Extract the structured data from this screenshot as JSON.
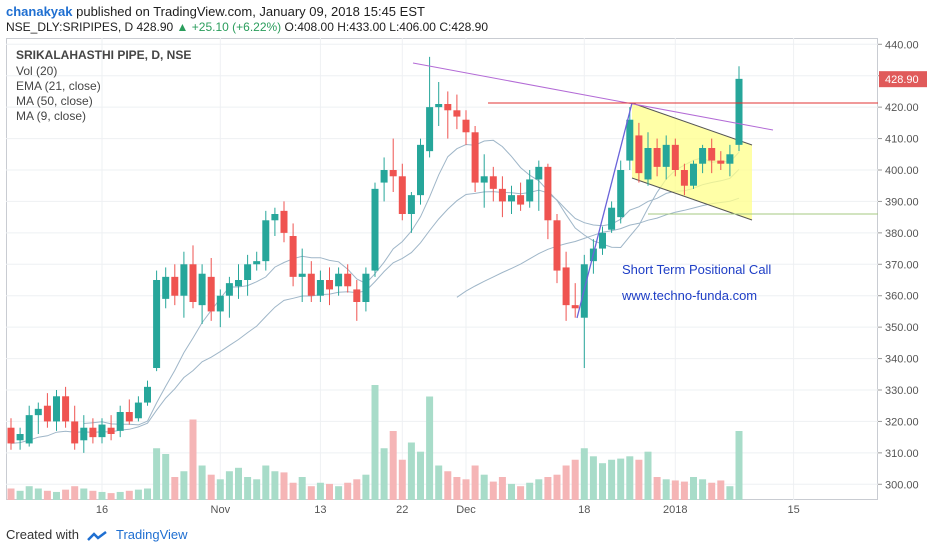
{
  "header": {
    "user": "chanakyak",
    "published_text": " published on TradingView.com, January 09, 2018 15:45 EST",
    "ticker_line": "NSE_DLY:SRIPIPES, D  428.90",
    "change": "+25.10 (+6.22%)",
    "ohlc": "O:408.00  H:433.00  L:406.00  C:428.90"
  },
  "legend": {
    "title": "SRIKALAHASTHI PIPE, D, NSE",
    "items": [
      "Vol (20)",
      "EMA (21, close)",
      "MA (50, close)",
      "MA (9, close)"
    ]
  },
  "annotations": {
    "call": "Short Term Positional Call",
    "site": "www.techno-funda.com"
  },
  "footer": {
    "created_with": "Created with",
    "brand": "TradingView"
  },
  "colors": {
    "up": "#26a69a",
    "down": "#ef5350",
    "up_vol": "#a8dcc9",
    "down_vol": "#f5b5b6",
    "ema": "#8aa6bb",
    "resistance": "#e03333",
    "trendline": "#b36bd6",
    "channel_fill": "#ffff8a",
    "support": "#a6c882",
    "price_label": "#e05a5a"
  },
  "chart_data": {
    "type": "candlestick",
    "symbol": "SRIKALAHASTHI PIPE, D, NSE",
    "last_price": "428.90",
    "y_ticks": [
      "300.00",
      "310.00",
      "320.00",
      "330.00",
      "340.00",
      "350.00",
      "360.00",
      "370.00",
      "380.00",
      "390.00",
      "400.00",
      "410.00",
      "420.00",
      "430.00",
      "440.00"
    ],
    "ylim": [
      295,
      442
    ],
    "x_ticks": [
      "16",
      "Nov",
      "13",
      "22",
      "Dec",
      "18",
      "2018",
      "15"
    ],
    "candles": [
      {
        "o": 318,
        "h": 321,
        "l": 311,
        "c": 313
      },
      {
        "o": 314,
        "h": 318,
        "l": 311,
        "c": 316
      },
      {
        "o": 313,
        "h": 325,
        "l": 312,
        "c": 322
      },
      {
        "o": 322,
        "h": 326,
        "l": 316,
        "c": 324
      },
      {
        "o": 325,
        "h": 329,
        "l": 318,
        "c": 320
      },
      {
        "o": 320,
        "h": 330,
        "l": 317,
        "c": 328
      },
      {
        "o": 328,
        "h": 331,
        "l": 318,
        "c": 320
      },
      {
        "o": 320,
        "h": 325,
        "l": 311,
        "c": 313
      },
      {
        "o": 314,
        "h": 322,
        "l": 310,
        "c": 318
      },
      {
        "o": 318,
        "h": 321,
        "l": 313,
        "c": 315
      },
      {
        "o": 315,
        "h": 321,
        "l": 313,
        "c": 319
      },
      {
        "o": 318,
        "h": 322,
        "l": 314,
        "c": 316
      },
      {
        "o": 317,
        "h": 325,
        "l": 315,
        "c": 323
      },
      {
        "o": 323,
        "h": 327,
        "l": 319,
        "c": 320
      },
      {
        "o": 321,
        "h": 328,
        "l": 320,
        "c": 326
      },
      {
        "o": 326,
        "h": 333,
        "l": 325,
        "c": 331
      },
      {
        "o": 337,
        "h": 368,
        "l": 336,
        "c": 365
      },
      {
        "o": 359,
        "h": 369,
        "l": 356,
        "c": 366
      },
      {
        "o": 366,
        "h": 370,
        "l": 357,
        "c": 360
      },
      {
        "o": 360,
        "h": 374,
        "l": 353,
        "c": 370
      },
      {
        "o": 370,
        "h": 376,
        "l": 356,
        "c": 358
      },
      {
        "o": 357,
        "h": 370,
        "l": 351,
        "c": 367
      },
      {
        "o": 366,
        "h": 372,
        "l": 352,
        "c": 355
      },
      {
        "o": 355,
        "h": 362,
        "l": 350,
        "c": 360
      },
      {
        "o": 360,
        "h": 366,
        "l": 353,
        "c": 364
      },
      {
        "o": 363,
        "h": 370,
        "l": 359,
        "c": 365
      },
      {
        "o": 365,
        "h": 373,
        "l": 360,
        "c": 370
      },
      {
        "o": 370,
        "h": 374,
        "l": 368,
        "c": 371
      },
      {
        "o": 371,
        "h": 387,
        "l": 368,
        "c": 384
      },
      {
        "o": 384,
        "h": 388,
        "l": 379,
        "c": 386
      },
      {
        "o": 387,
        "h": 390,
        "l": 377,
        "c": 380
      },
      {
        "o": 379,
        "h": 383,
        "l": 363,
        "c": 366
      },
      {
        "o": 366,
        "h": 375,
        "l": 358,
        "c": 367
      },
      {
        "o": 367,
        "h": 371,
        "l": 358,
        "c": 360
      },
      {
        "o": 360,
        "h": 368,
        "l": 358,
        "c": 365
      },
      {
        "o": 365,
        "h": 369,
        "l": 357,
        "c": 362
      },
      {
        "o": 363,
        "h": 369,
        "l": 360,
        "c": 367
      },
      {
        "o": 367,
        "h": 370,
        "l": 361,
        "c": 363
      },
      {
        "o": 362,
        "h": 365,
        "l": 352,
        "c": 358
      },
      {
        "o": 358,
        "h": 369,
        "l": 355,
        "c": 367
      },
      {
        "o": 368,
        "h": 396,
        "l": 366,
        "c": 394
      },
      {
        "o": 396,
        "h": 404,
        "l": 390,
        "c": 400
      },
      {
        "o": 400,
        "h": 410,
        "l": 393,
        "c": 398
      },
      {
        "o": 398,
        "h": 402,
        "l": 384,
        "c": 386
      },
      {
        "o": 386,
        "h": 393,
        "l": 380,
        "c": 392
      },
      {
        "o": 392,
        "h": 410,
        "l": 389,
        "c": 408
      },
      {
        "o": 406,
        "h": 436,
        "l": 404,
        "c": 420
      },
      {
        "o": 420,
        "h": 428,
        "l": 414,
        "c": 421
      },
      {
        "o": 421,
        "h": 425,
        "l": 410,
        "c": 419
      },
      {
        "o": 419,
        "h": 424,
        "l": 413,
        "c": 417
      },
      {
        "o": 416,
        "h": 419,
        "l": 408,
        "c": 412
      },
      {
        "o": 412,
        "h": 414,
        "l": 393,
        "c": 396
      },
      {
        "o": 396,
        "h": 405,
        "l": 388,
        "c": 398
      },
      {
        "o": 398,
        "h": 401,
        "l": 390,
        "c": 394
      },
      {
        "o": 394,
        "h": 398,
        "l": 385,
        "c": 390
      },
      {
        "o": 390,
        "h": 395,
        "l": 386,
        "c": 392
      },
      {
        "o": 392,
        "h": 396,
        "l": 387,
        "c": 389
      },
      {
        "o": 390,
        "h": 400,
        "l": 388,
        "c": 397
      },
      {
        "o": 397,
        "h": 403,
        "l": 387,
        "c": 401
      },
      {
        "o": 401,
        "h": 402,
        "l": 378,
        "c": 384
      },
      {
        "o": 384,
        "h": 386,
        "l": 364,
        "c": 368
      },
      {
        "o": 369,
        "h": 374,
        "l": 352,
        "c": 357
      },
      {
        "o": 357,
        "h": 364,
        "l": 353,
        "c": 356
      },
      {
        "o": 353,
        "h": 373,
        "l": 337,
        "c": 370
      },
      {
        "o": 371,
        "h": 378,
        "l": 367,
        "c": 375
      },
      {
        "o": 375,
        "h": 382,
        "l": 373,
        "c": 380
      },
      {
        "o": 381,
        "h": 390,
        "l": 380,
        "c": 388
      },
      {
        "o": 385,
        "h": 403,
        "l": 383,
        "c": 400
      },
      {
        "o": 403,
        "h": 420,
        "l": 400,
        "c": 416
      },
      {
        "o": 411,
        "h": 415,
        "l": 396,
        "c": 399
      },
      {
        "o": 397,
        "h": 412,
        "l": 395,
        "c": 407
      },
      {
        "o": 407,
        "h": 410,
        "l": 398,
        "c": 401
      },
      {
        "o": 401,
        "h": 411,
        "l": 397,
        "c": 408
      },
      {
        "o": 408,
        "h": 410,
        "l": 398,
        "c": 400
      },
      {
        "o": 400,
        "h": 402,
        "l": 392,
        "c": 395
      },
      {
        "o": 395,
        "h": 403,
        "l": 394,
        "c": 402
      },
      {
        "o": 402,
        "h": 408,
        "l": 399,
        "c": 407
      },
      {
        "o": 407,
        "h": 410,
        "l": 399,
        "c": 403
      },
      {
        "o": 403,
        "h": 406,
        "l": 400,
        "c": 402
      },
      {
        "o": 402,
        "h": 408,
        "l": 398,
        "c": 405
      },
      {
        "o": 408,
        "h": 433,
        "l": 406,
        "c": 429
      }
    ],
    "volume_relative": [
      0.1,
      0.08,
      0.12,
      0.1,
      0.08,
      0.07,
      0.09,
      0.12,
      0.1,
      0.08,
      0.07,
      0.06,
      0.07,
      0.08,
      0.09,
      0.1,
      0.45,
      0.4,
      0.2,
      0.25,
      0.7,
      0.3,
      0.22,
      0.18,
      0.25,
      0.28,
      0.2,
      0.18,
      0.3,
      0.25,
      0.24,
      0.15,
      0.2,
      0.12,
      0.15,
      0.14,
      0.12,
      0.15,
      0.18,
      0.22,
      1.0,
      0.45,
      0.6,
      0.35,
      0.5,
      0.42,
      0.9,
      0.3,
      0.25,
      0.2,
      0.18,
      0.3,
      0.22,
      0.16,
      0.2,
      0.14,
      0.12,
      0.15,
      0.18,
      0.2,
      0.22,
      0.3,
      0.35,
      0.45,
      0.38,
      0.32,
      0.35,
      0.36,
      0.38,
      0.35,
      0.42,
      0.2,
      0.18,
      0.17,
      0.16,
      0.2,
      0.18,
      0.15,
      0.17,
      0.12,
      0.6
    ]
  }
}
